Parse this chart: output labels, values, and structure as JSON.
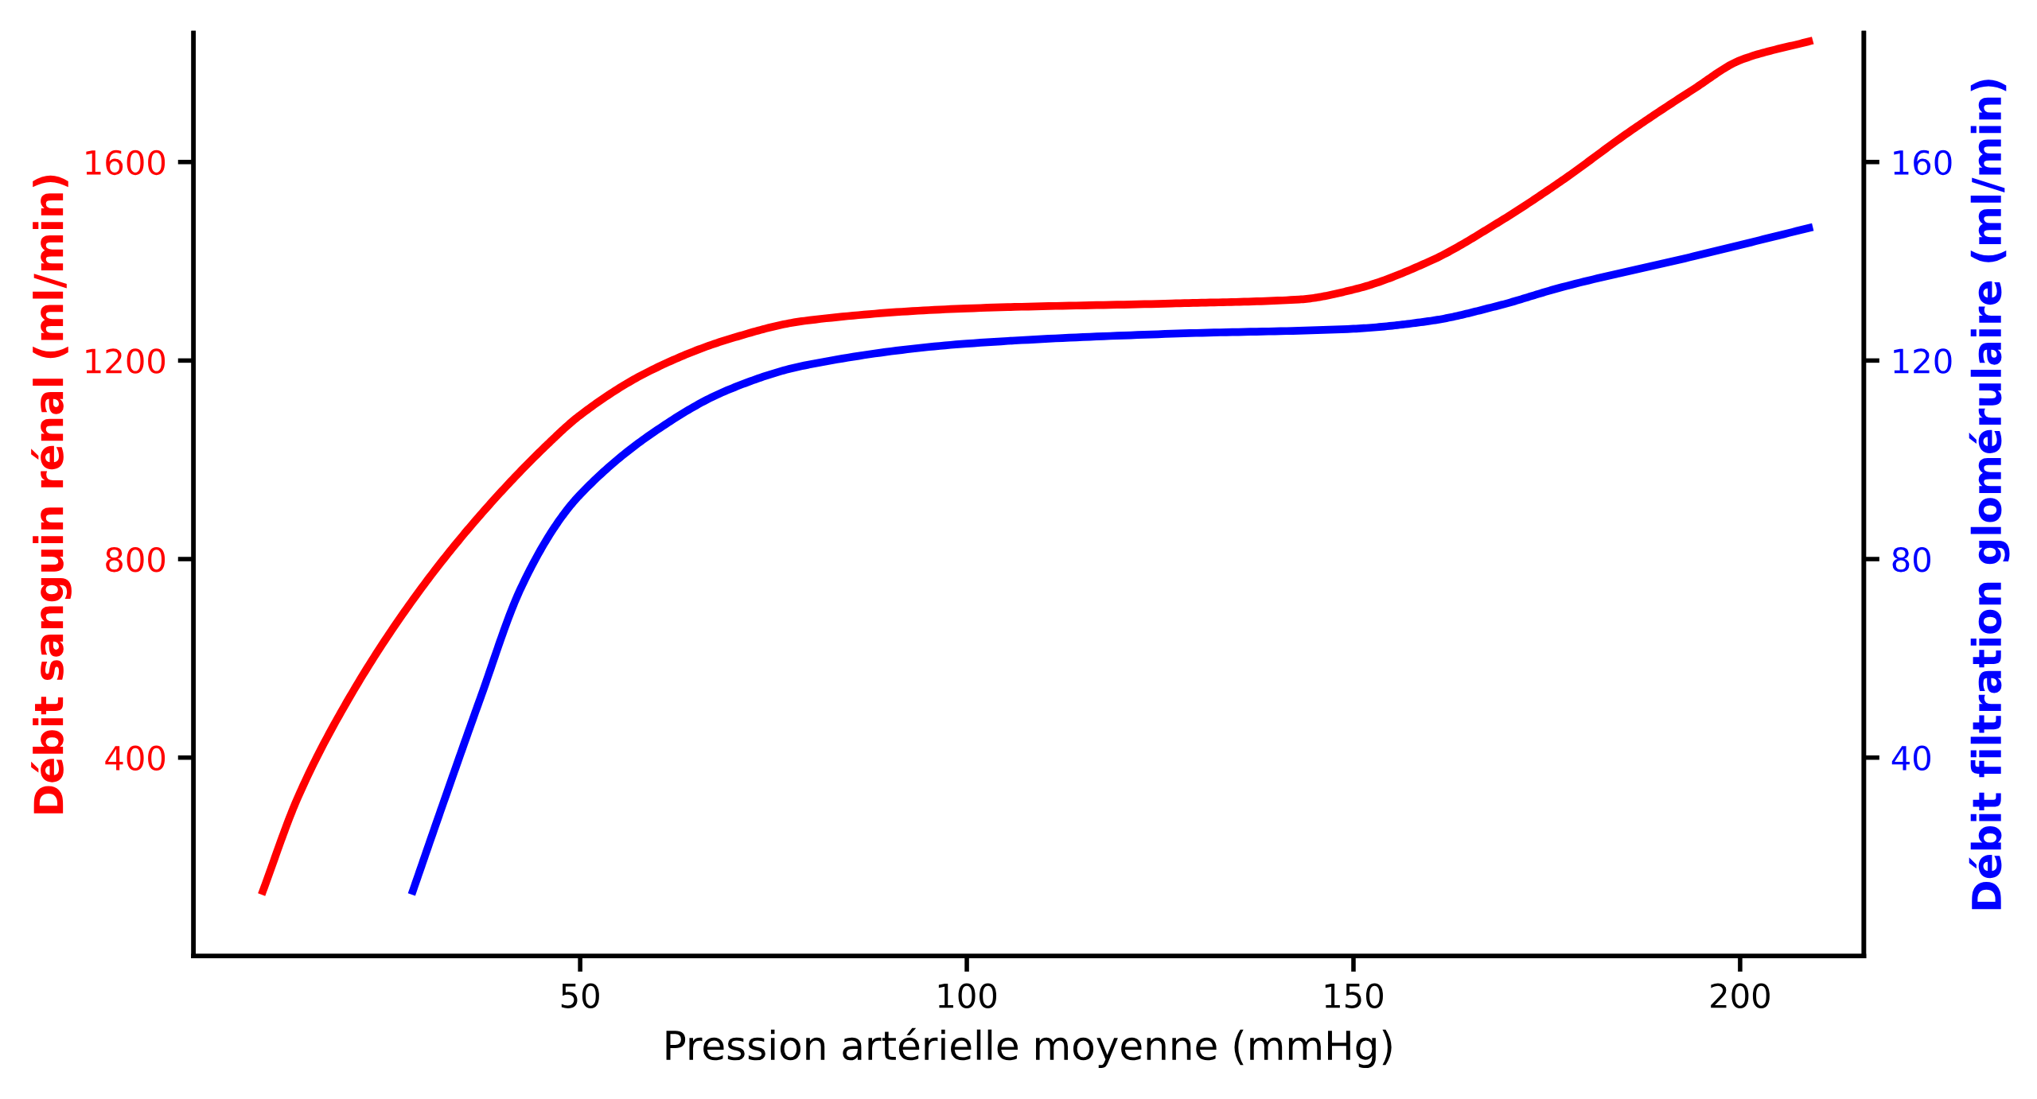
{
  "chart_data": {
    "type": "line",
    "xlabel": "Pression artérielle moyenne (mmHg)",
    "ylabel": "Débit sanguin rénal (ml/min)",
    "y2label": "Débit filtration glomérulaire (ml/min)",
    "xlim": [
      0,
      216
    ],
    "xticks": [
      50,
      100,
      150,
      200
    ],
    "ylim": [
      0,
      1860
    ],
    "yticks": [
      400,
      800,
      1200,
      1600
    ],
    "y2lim": [
      0,
      186
    ],
    "y2ticks": [
      40,
      80,
      120,
      160
    ],
    "grid": false,
    "legend": false,
    "line_style": "solid",
    "marker": "none",
    "series": [
      {
        "color": "#ff0000",
        "x": [
          8.8,
          13.5,
          20.2,
          28.7,
          37.1,
          45.5,
          50,
          59,
          69,
          79,
          100,
          126.5,
          143,
          150,
          160,
          168.6,
          177,
          185.5,
          194,
          200,
          209.4
        ],
        "values": [
          124,
          320,
          522,
          725,
          889,
          1027,
          1090,
          1179,
          1242,
          1280,
          1305,
          1315,
          1323,
          1343,
          1401,
          1477,
          1563,
          1659,
          1747,
          1805,
          1845
        ]
      },
      {
        "color": "#0000ff",
        "axis": "y2",
        "x": [
          28.2,
          32,
          37.1,
          42.2,
          47.2,
          50,
          59,
          69,
          79,
          100,
          126.5,
          150,
          160,
          168.6,
          177,
          194,
          209.4
        ],
        "values": [
          12.4,
          29.5,
          52,
          73.7,
          87.6,
          93,
          105,
          114,
          119,
          123.4,
          125.4,
          126.4,
          128,
          131,
          134.8,
          141,
          146.9
        ]
      }
    ]
  }
}
